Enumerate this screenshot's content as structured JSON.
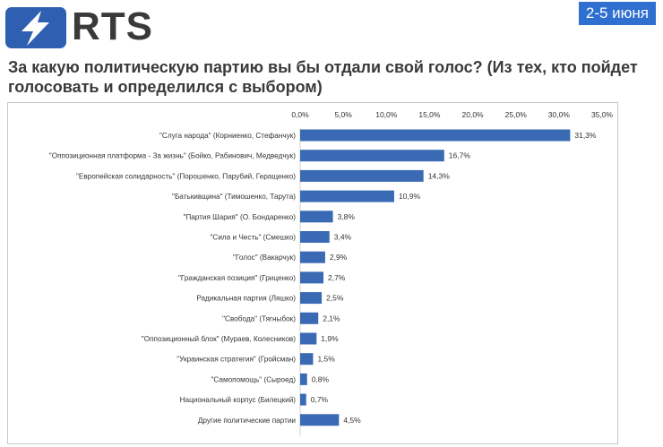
{
  "header": {
    "logo_text": "RTS",
    "date_badge": "2-5 июня",
    "question": "За какую политическую партию вы бы отдали свой голос? (Из тех, кто пойдет голосовать и определился с выбором)"
  },
  "colors": {
    "bar": "#3a6ab4",
    "logo_bg": "#2f5fb0",
    "badge_bg": "#2f6fd0"
  },
  "chart_data": {
    "type": "bar",
    "orientation": "horizontal",
    "xlim": [
      0,
      35
    ],
    "ticks": [
      0,
      5,
      10,
      15,
      20,
      25,
      30,
      35
    ],
    "tick_labels": [
      "0,0%",
      "5,0%",
      "10,0%",
      "15,0%",
      "20,0%",
      "25,0%",
      "30,0%",
      "35,0%"
    ],
    "grid": false,
    "categories": [
      "\"Слуга народа\" (Корниенко, Стефанчук)",
      "\"Оппозиционная платформа - За жизнь\" (Бойко, Рабинович, Медведчук)",
      "\"Европейская солидарность\" (Порошенко, Парубий, Геращенко)",
      "\"Батькивщина\" (Тимошенко, Тарута)",
      "\"Партия Шария\" (О. Бондаренко)",
      "\"Сила и Честь\" (Смешко)",
      "\"Голос\" (Вакарчук)",
      "\"Гражданская позиция\" (Гриценко)",
      "Радикальная партия (Ляшко)",
      "\"Свобода\" (Тягныбок)",
      "\"Оппозиционный блок\" (Мураев, Колесников)",
      "\"Украинская стратегия\" (Гройсман)",
      "\"Самопомощь\" (Сыроед)",
      "Национальный корпус (Билецкий)",
      "Другие политические партии"
    ],
    "values": [
      31.3,
      16.7,
      14.3,
      10.9,
      3.8,
      3.4,
      2.9,
      2.7,
      2.5,
      2.1,
      1.9,
      1.5,
      0.8,
      0.7,
      4.5
    ],
    "value_labels": [
      "31,3%",
      "16,7%",
      "14,3%",
      "10,9%",
      "3,8%",
      "3,4%",
      "2,9%",
      "2,7%",
      "2,5%",
      "2,1%",
      "1,9%",
      "1,5%",
      "0,8%",
      "0,7%",
      "4,5%"
    ]
  }
}
